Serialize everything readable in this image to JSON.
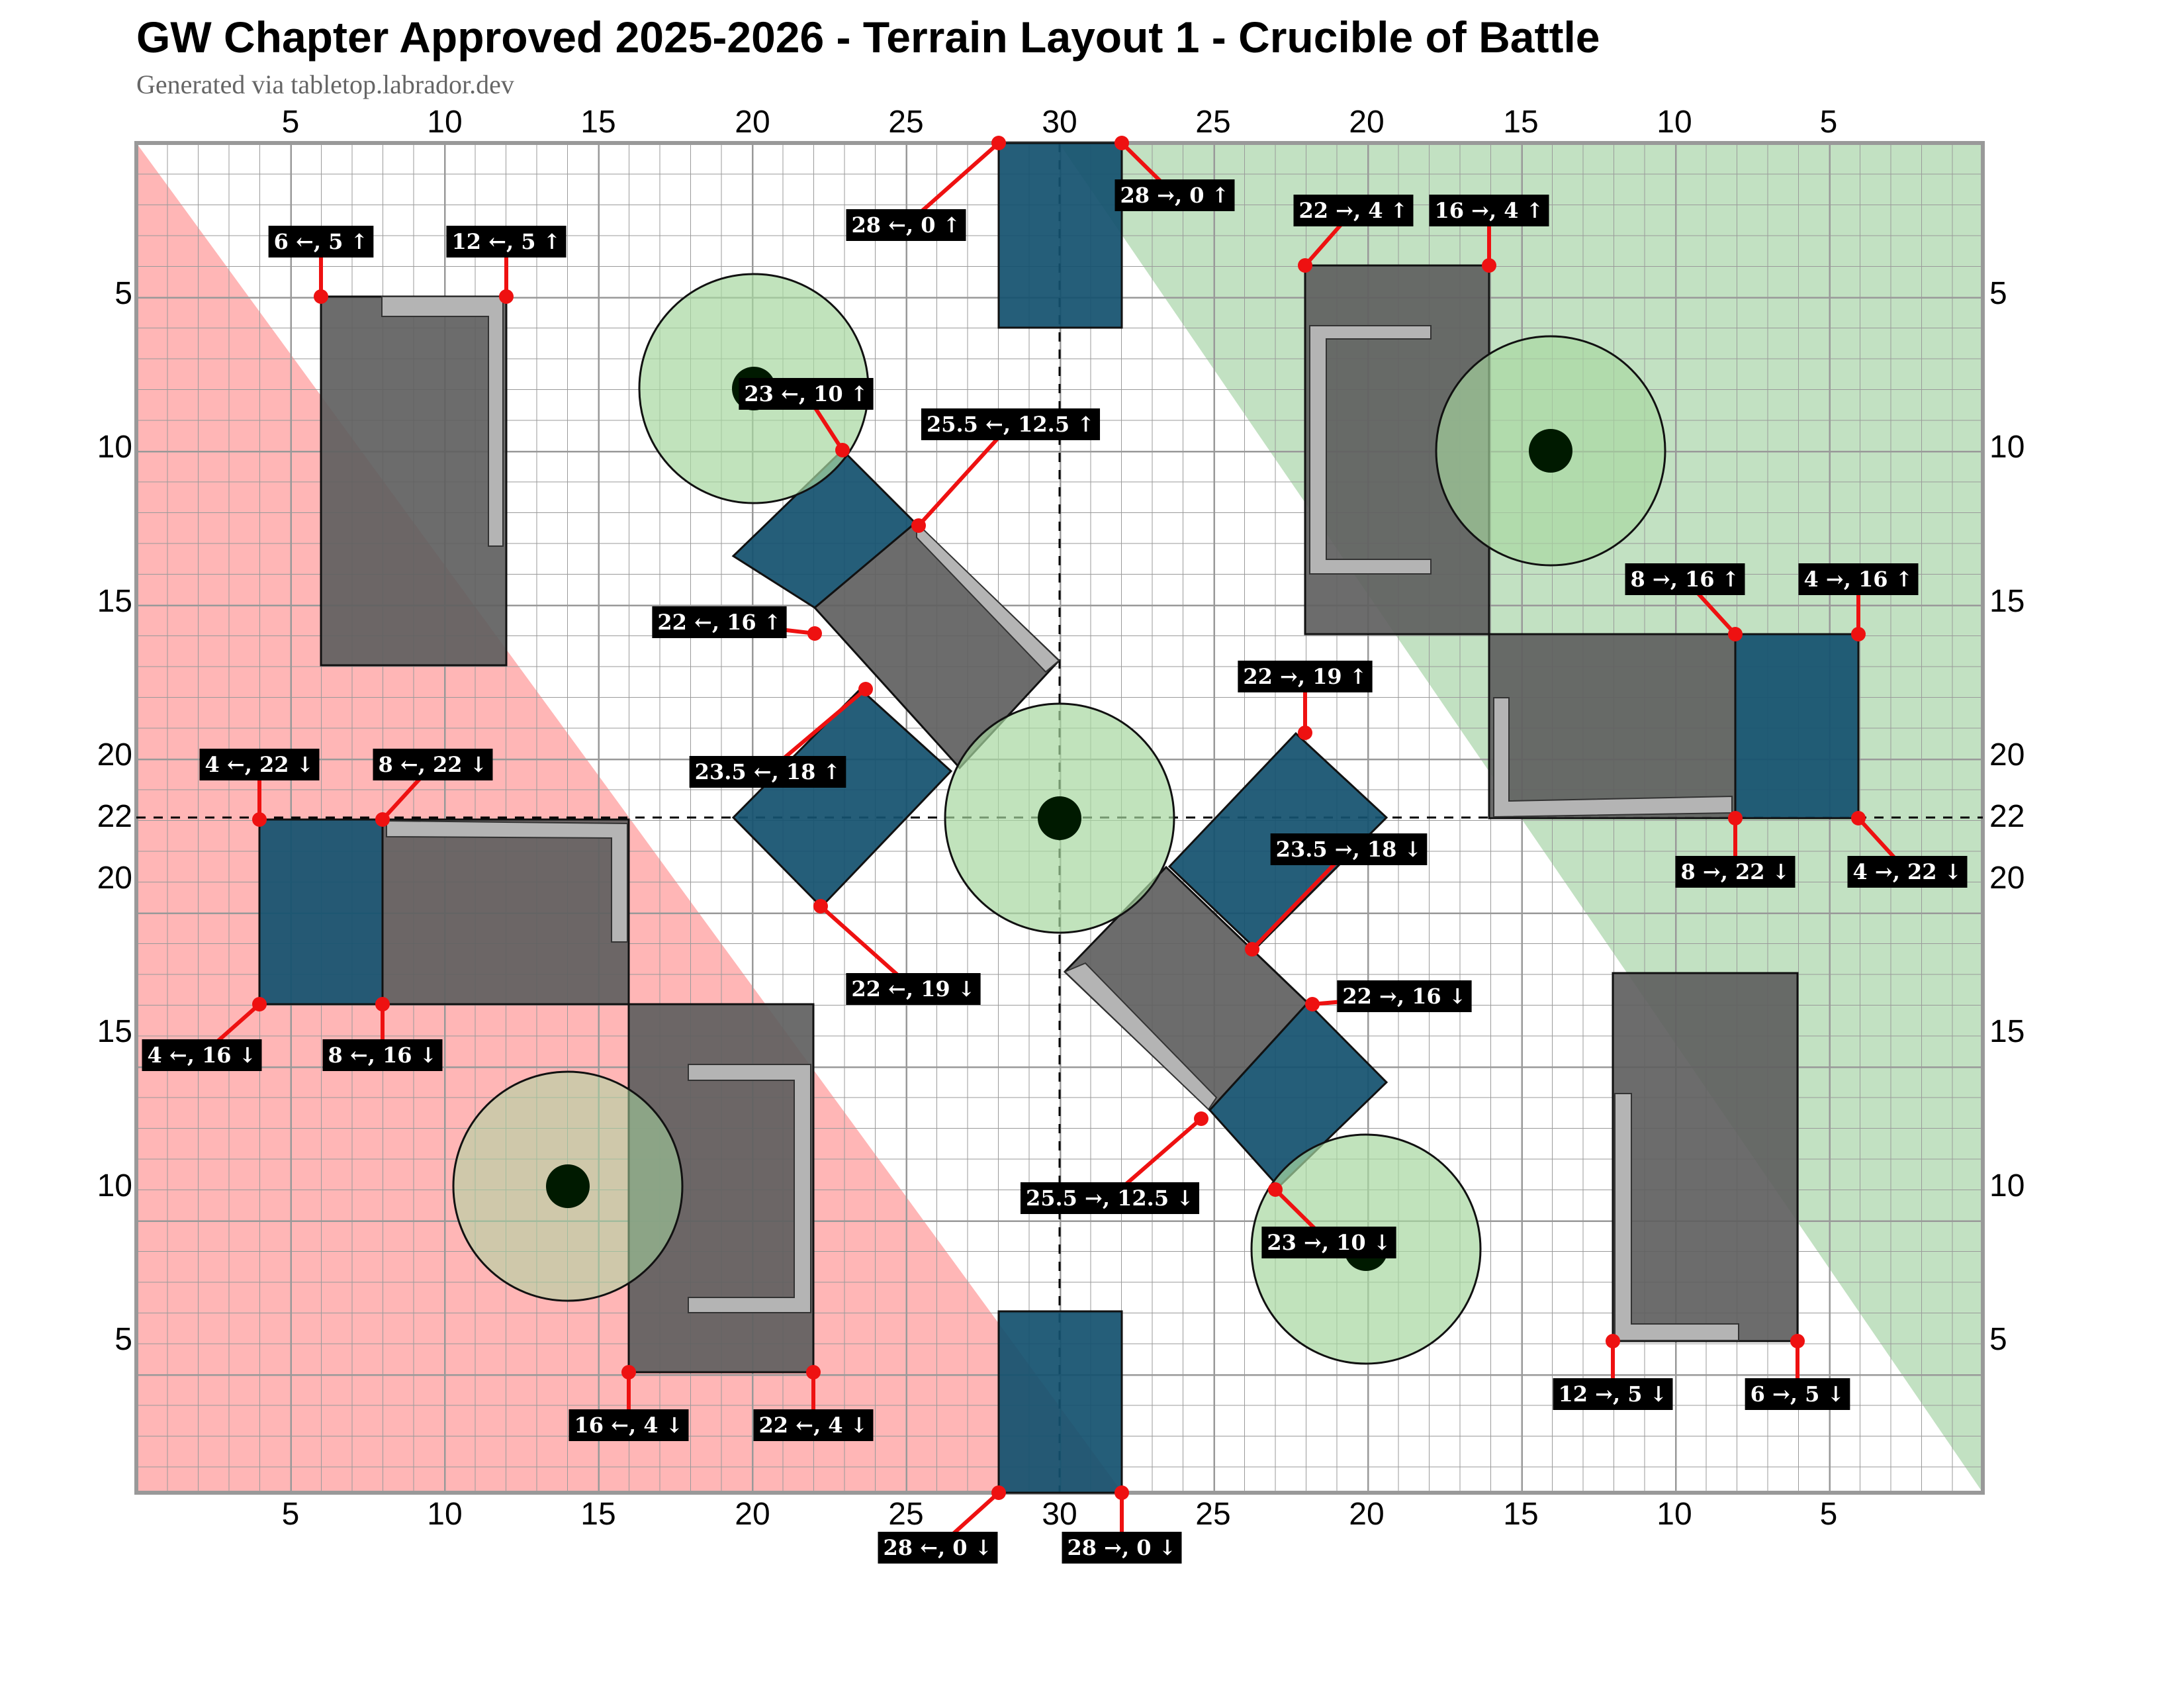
{
  "header": {
    "title": "GW Chapter Approved 2025-2026 - Terrain Layout 1 - Crucible of Battle",
    "subtitle": "Generated via tabletop.labrador.dev"
  },
  "axes": {
    "top": [
      "5",
      "10",
      "15",
      "20",
      "25",
      "30",
      "25",
      "20",
      "15",
      "10",
      "5"
    ],
    "bottom": [
      "5",
      "10",
      "15",
      "20",
      "25",
      "30",
      "25",
      "20",
      "15",
      "10",
      "5"
    ],
    "left": [
      "5",
      "10",
      "15",
      "20",
      "22",
      "20",
      "15",
      "10",
      "5"
    ],
    "right": [
      "5",
      "10",
      "15",
      "20",
      "22",
      "20",
      "15",
      "10",
      "5"
    ]
  },
  "colors": {
    "red_zone": "#ff9a9a",
    "green_zone": "#8fc98f",
    "ruin_fill": "#5f5f5f",
    "ruin_wall": "#b4b4b4",
    "container_fill": "#14526f",
    "objective_area": "#a7d7a0",
    "objective_marker": "#001a00",
    "callout_pin": "#ee1111"
  },
  "callouts": [
    {
      "label": "6 ←, 5 ↑"
    },
    {
      "label": "12 ←, 5 ↑"
    },
    {
      "label": "28 ←, 0 ↑"
    },
    {
      "label": "28 →, 0 ↑"
    },
    {
      "label": "22 →, 4 ↑"
    },
    {
      "label": "16 →, 4 ↑"
    },
    {
      "label": "23 ←, 10 ↑"
    },
    {
      "label": "25.5 ←, 12.5 ↑"
    },
    {
      "label": "22 ←, 16 ↑"
    },
    {
      "label": "23.5 ←, 18 ↑"
    },
    {
      "label": "22 →, 19 ↑"
    },
    {
      "label": "8 →, 16 ↑"
    },
    {
      "label": "4 →, 16 ↑"
    },
    {
      "label": "4 ←, 22 ↓"
    },
    {
      "label": "8 ←, 22 ↓"
    },
    {
      "label": "23.5 →, 18 ↓"
    },
    {
      "label": "8 →, 22 ↓"
    },
    {
      "label": "4 →, 22 ↓"
    },
    {
      "label": "22 ←, 19 ↓"
    },
    {
      "label": "4 ←, 16 ↓"
    },
    {
      "label": "8 ←, 16 ↓"
    },
    {
      "label": "22 →, 16 ↓"
    },
    {
      "label": "25.5 →, 12.5 ↓"
    },
    {
      "label": "23 →, 10 ↓"
    },
    {
      "label": "16 ←, 4 ↓"
    },
    {
      "label": "22 ←, 4 ↓"
    },
    {
      "label": "12 →, 5 ↓"
    },
    {
      "label": "6 →, 5 ↓"
    },
    {
      "label": "28 ←, 0 ↓"
    },
    {
      "label": "28 →, 0 ↓"
    }
  ]
}
